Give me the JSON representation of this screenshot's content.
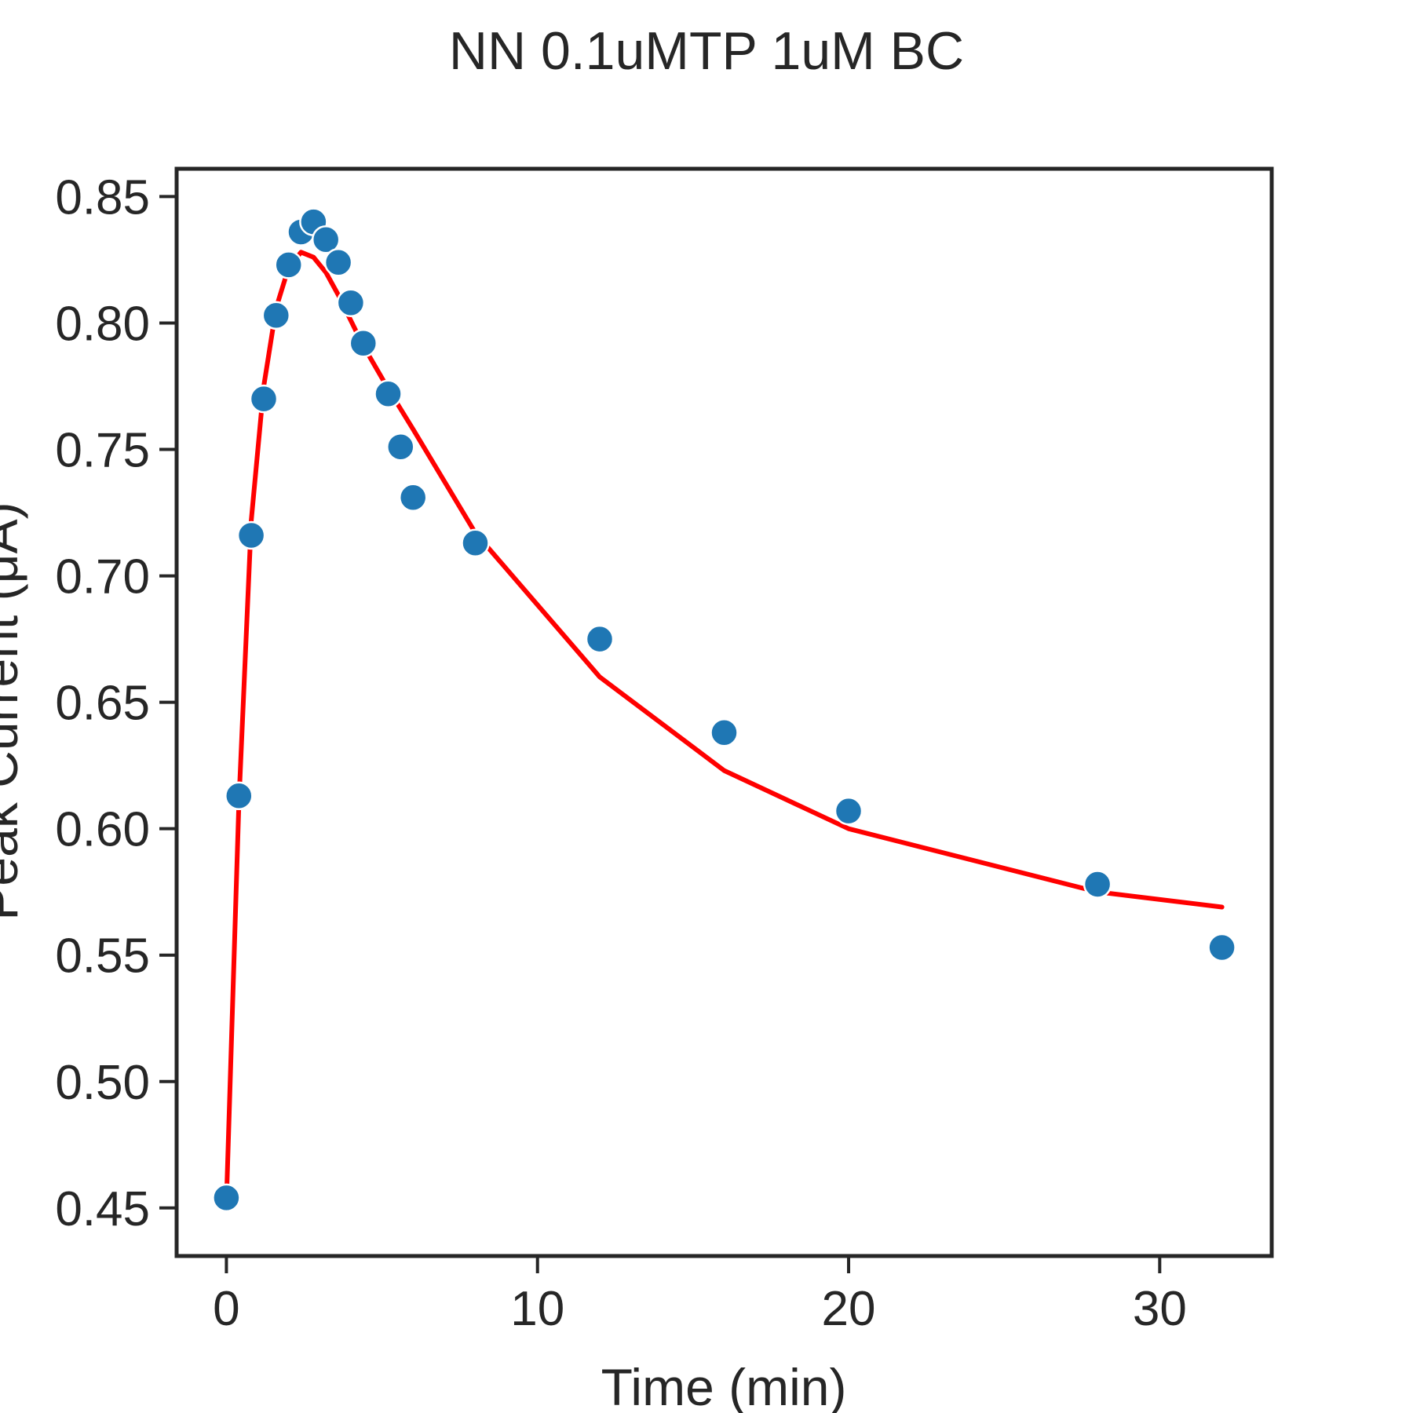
{
  "chart_data": {
    "type": "scatter",
    "title": "NN 0.1uMTP 1uM BC",
    "xlabel": "Time (min)",
    "ylabel": "Peak Current (μA)",
    "xlim": [
      -1.6,
      33.6
    ],
    "ylim": [
      0.431,
      0.861
    ],
    "x_ticks": [
      0,
      10,
      20,
      30
    ],
    "x_tick_labels": [
      "0",
      "10",
      "20",
      "30"
    ],
    "y_ticks": [
      0.45,
      0.5,
      0.55,
      0.6,
      0.65,
      0.7,
      0.75,
      0.8,
      0.85
    ],
    "y_tick_labels": [
      "0.45",
      "0.50",
      "0.55",
      "0.60",
      "0.65",
      "0.70",
      "0.75",
      "0.80",
      "0.85"
    ],
    "grid": false,
    "colors": {
      "points": "#1f77b4",
      "fit": "#ff0000",
      "axes": "#262626"
    },
    "series": [
      {
        "kind": "points",
        "x": [
          0,
          0.4,
          0.8,
          1.2,
          1.6,
          2.0,
          2.4,
          2.8,
          3.2,
          3.6,
          4.0,
          4.4,
          5.2,
          5.6,
          6.0,
          8.0,
          12.0,
          16.0,
          20.0,
          28.0,
          32.0
        ],
        "y": [
          0.454,
          0.613,
          0.716,
          0.77,
          0.803,
          0.823,
          0.836,
          0.84,
          0.833,
          0.824,
          0.808,
          0.792,
          0.772,
          0.751,
          0.731,
          0.713,
          0.675,
          0.638,
          0.607,
          0.578,
          0.553
        ]
      },
      {
        "kind": "line",
        "x": [
          0,
          0.4,
          0.8,
          1.2,
          1.6,
          2.0,
          2.4,
          2.8,
          3.2,
          3.6,
          4.0,
          4.4,
          5.2,
          6.0,
          8.0,
          12.0,
          16.0,
          20.0,
          28.0,
          32.0
        ],
        "y": [
          0.452,
          0.61,
          0.722,
          0.775,
          0.806,
          0.822,
          0.828,
          0.826,
          0.82,
          0.811,
          0.801,
          0.791,
          0.774,
          0.758,
          0.717,
          0.66,
          0.623,
          0.6,
          0.575,
          0.569
        ]
      }
    ]
  }
}
